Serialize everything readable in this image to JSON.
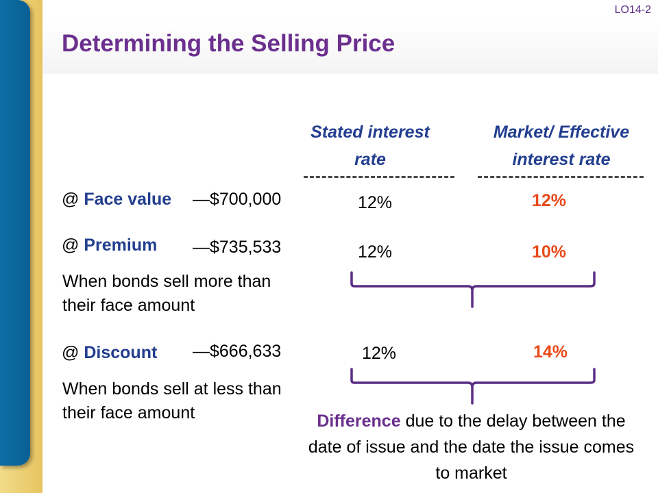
{
  "header": {
    "title": "Determining the Selling Price",
    "lo": "LO14-2"
  },
  "columns": {
    "stated": "Stated interest rate",
    "market": "Market/ Effective interest rate"
  },
  "rows": [
    {
      "label": "Face value",
      "price": "—$700,000",
      "stated_rate": "12%",
      "market_rate": "12%",
      "description": ""
    },
    {
      "label": "Premium",
      "price": "—$735,533",
      "stated_rate": "12%",
      "market_rate": "10%",
      "description": "When bonds sell more than their face amount"
    },
    {
      "label": "Discount",
      "price": "—$666,633",
      "stated_rate": "12%",
      "market_rate": "14%",
      "description": "When bonds sell at less than their face amount"
    }
  ],
  "at_symbol": "@",
  "footer": {
    "difference_keyword": "Difference",
    "difference_text": "due to the delay between the date of issue and the date the issue comes to market"
  },
  "colors": {
    "title": "#6b2f8e",
    "heading": "#223e8f",
    "market_rate": "#e84a1a",
    "brace": "#5b2d86",
    "sidebar_blue": "#0d6fa6",
    "sidebar_gold": "#e7c460"
  }
}
